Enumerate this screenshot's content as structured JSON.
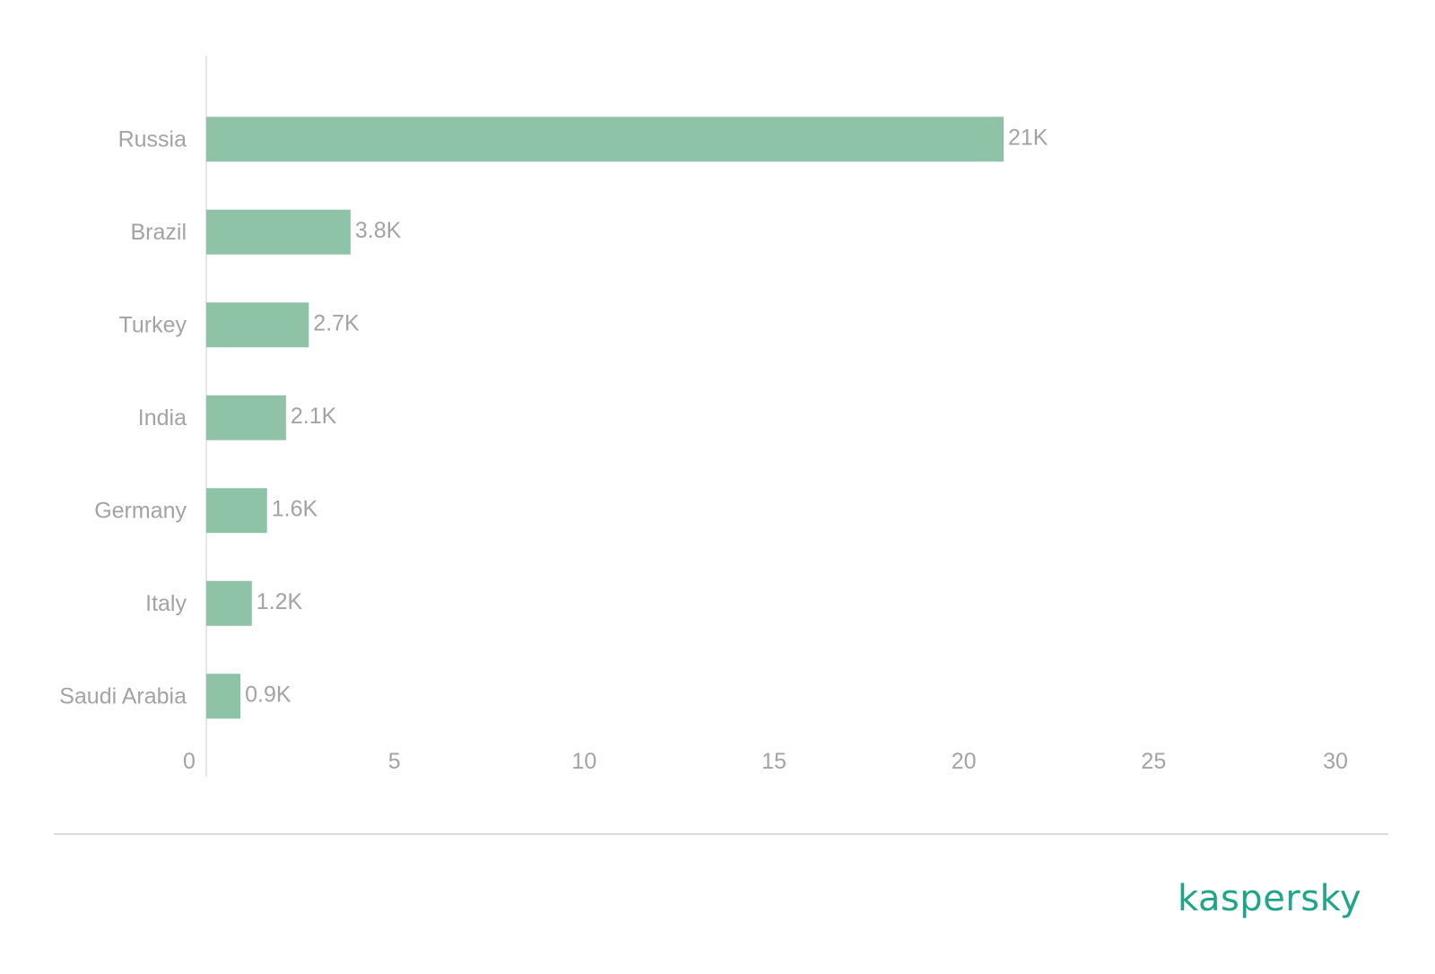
{
  "chart_data": {
    "type": "bar",
    "orientation": "horizontal",
    "categories": [
      "Russia",
      "Brazil",
      "Turkey",
      "India",
      "Germany",
      "Italy",
      "Saudi Arabia"
    ],
    "values": [
      21.0,
      3.8,
      2.7,
      2.1,
      1.6,
      1.2,
      0.9
    ],
    "data_labels": [
      "21K",
      "3.8K",
      "2.7K",
      "2.1K",
      "1.6K",
      "1.2K",
      "0.9K"
    ],
    "xlim": [
      0,
      30
    ],
    "xticks": [
      0,
      5,
      10,
      15,
      20,
      25,
      30
    ],
    "grid": false,
    "legend": "none",
    "bar_color": "#8fc3a8",
    "label_color": "#a3a3a3"
  },
  "brand": {
    "logo_text": "kaspersky",
    "color": "#1fa589"
  }
}
